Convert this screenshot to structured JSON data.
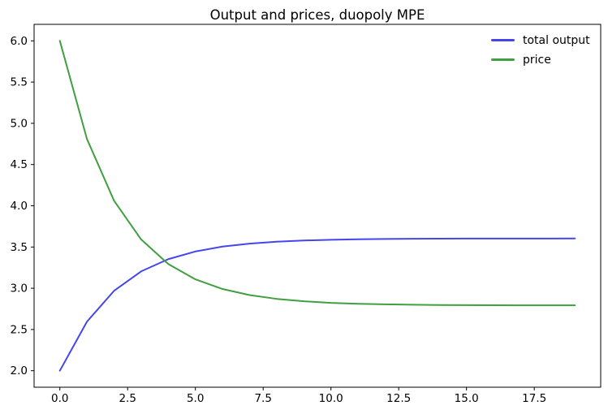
{
  "chart_data": {
    "type": "line",
    "title": "Output and prices, duopoly MPE",
    "xlabel": "",
    "ylabel": "",
    "x": [
      0,
      1,
      2,
      3,
      4,
      5,
      6,
      7,
      8,
      9,
      10,
      11,
      12,
      13,
      14,
      15,
      16,
      17,
      18,
      19
    ],
    "series": [
      {
        "name": "total output",
        "color": "#4545ee",
        "values": [
          2.0,
          2.595,
          2.969,
          3.205,
          3.353,
          3.446,
          3.505,
          3.541,
          3.565,
          3.579,
          3.588,
          3.594,
          3.598,
          3.6,
          3.601,
          3.602,
          3.603,
          3.603,
          3.603,
          3.604
        ]
      },
      {
        "name": "price",
        "color": "#409f40",
        "values": [
          6.0,
          4.81,
          4.061,
          3.591,
          3.294,
          3.108,
          2.991,
          2.917,
          2.871,
          2.842,
          2.823,
          2.812,
          2.805,
          2.8,
          2.797,
          2.795,
          2.794,
          2.793,
          2.793,
          2.793
        ]
      }
    ],
    "xlim": [
      -0.95,
      19.95
    ],
    "ylim": [
      1.8,
      6.2
    ],
    "xticks": [
      0.0,
      2.5,
      5.0,
      7.5,
      10.0,
      12.5,
      15.0,
      17.5
    ],
    "xtick_labels": [
      "0.0",
      "2.5",
      "5.0",
      "7.5",
      "10.0",
      "12.5",
      "15.0",
      "17.5"
    ],
    "yticks": [
      2.0,
      2.5,
      3.0,
      3.5,
      4.0,
      4.5,
      5.0,
      5.5,
      6.0
    ],
    "ytick_labels": [
      "2.0",
      "2.5",
      "3.0",
      "3.5",
      "4.0",
      "4.5",
      "5.0",
      "5.5",
      "6.0"
    ],
    "grid": false,
    "legend": {
      "position": "upper right",
      "frame": false,
      "entries": [
        "total output",
        "price"
      ]
    },
    "frame_color": "#000000",
    "line_width": 2
  }
}
